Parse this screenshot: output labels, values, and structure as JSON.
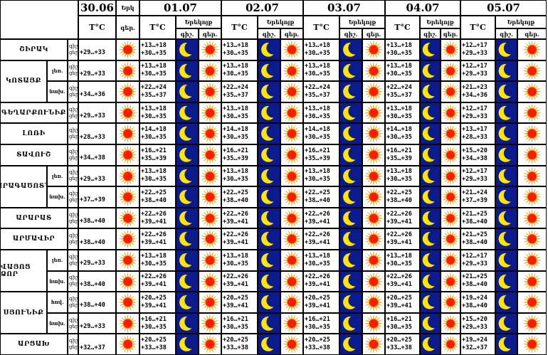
{
  "header": {
    "dates": [
      "30.06",
      "01.07",
      "02.07",
      "03.07",
      "04.07",
      "05.07"
    ],
    "temp_label": "T°C",
    "cut_label_1": "Երկ",
    "cut_label_2": "գեր.",
    "day_label": "Երեկոյք",
    "night_label": "գիշ.",
    "period_label": "գեր."
  },
  "labels": {
    "night": "գիշ.",
    "day": "ցեր."
  },
  "regions": [
    {
      "name": "ՇԻՐԱԿ"
    },
    {
      "name": "ԿՈՏԱՅՔ",
      "subs": [
        "լեռ.",
        "նախ."
      ]
    },
    {
      "name": "ԳԵՂԱՐՔՈՒՆԻՔ"
    },
    {
      "name": "ԼՈՌԻ"
    },
    {
      "name": "ՏԱՎՈՒՇ"
    },
    {
      "name": "ԱՐԱԳԱԾՈՏՆ",
      "subs": [
        "լեռ.",
        "նախ."
      ]
    },
    {
      "name": "ԱՐԱՐԱՏ"
    },
    {
      "name": "ԱՐՄԱՎԻՐ"
    },
    {
      "name": "ՎԱՅՈՑ ՁՈՐ",
      "subs": [
        "լեռ.",
        "նախ."
      ]
    },
    {
      "name": "ՍՅՈՒՆԻՔ",
      "subs": [
        "հով.",
        "նախ."
      ]
    },
    {
      "name": "ԱՐՑԱԽ"
    }
  ],
  "rows": [
    {
      "d0": "+29…+33",
      "days": [
        [
          "+13…+18",
          "+30…+35"
        ],
        [
          "+13…+18",
          "+30…+35"
        ],
        [
          "+13…+18",
          "+30…+35"
        ],
        [
          "+13…+18",
          "+30…+35"
        ],
        [
          "+12…+17",
          "+29…+33"
        ]
      ]
    },
    {
      "d0": "+29…+33",
      "days": [
        [
          "+13…+18",
          "+30…+35"
        ],
        [
          "+13…+18",
          "+30…+35"
        ],
        [
          "+13…+18",
          "+30…+35"
        ],
        [
          "+13…+18",
          "+30…+35"
        ],
        [
          "+12…+17",
          "+29…+33"
        ]
      ]
    },
    {
      "d0": "+34…+36",
      "days": [
        [
          "+22…+24",
          "+35…+37"
        ],
        [
          "+22…+24",
          "+35…+37"
        ],
        [
          "+22…+24",
          "+35…+37"
        ],
        [
          "+22…+24",
          "+35…+37"
        ],
        [
          "+21…+23",
          "+34…+36"
        ]
      ]
    },
    {
      "d0": "+29…+33",
      "days": [
        [
          "+13…+18",
          "+30…+35"
        ],
        [
          "+13…+18",
          "+30…+35"
        ],
        [
          "+13…+18",
          "+30…+35"
        ],
        [
          "+13…+18",
          "+30…+35"
        ],
        [
          "+12…+17",
          "+29…+33"
        ]
      ]
    },
    {
      "d0": "+28…+33",
      "days": [
        [
          "+14…+18",
          "+30…+35"
        ],
        [
          "+14…+18",
          "+30…+35"
        ],
        [
          "+14…+18",
          "+30…+35"
        ],
        [
          "+14…+18",
          "+30…+35"
        ],
        [
          "+13…+17",
          "+28…+33"
        ]
      ]
    },
    {
      "d0": "+34…+38",
      "days": [
        [
          "+16…+21",
          "+35…+39"
        ],
        [
          "+16…+21",
          "+35…+39"
        ],
        [
          "+16…+21",
          "+35…+39"
        ],
        [
          "+16…+21",
          "+35…+39"
        ],
        [
          "+15…+20",
          "+34…+38"
        ]
      ]
    },
    {
      "d0": "+29…+33",
      "days": [
        [
          "+13…+18",
          "+30…+35"
        ],
        [
          "+13…+18",
          "+30…+35"
        ],
        [
          "+13…+18",
          "+30…+35"
        ],
        [
          "+13…+18",
          "+30…+35"
        ],
        [
          "+12…+17",
          "+29…+33"
        ]
      ]
    },
    {
      "d0": "+37…+39",
      "days": [
        [
          "+22…+25",
          "+38…+40"
        ],
        [
          "+22…+25",
          "+38…+40"
        ],
        [
          "+22…+25",
          "+38…+40"
        ],
        [
          "+22…+25",
          "+38…+40"
        ],
        [
          "+21…+24",
          "+37…+39"
        ]
      ]
    },
    {
      "d0": "+38…+40",
      "days": [
        [
          "+22…+26",
          "+39…+41"
        ],
        [
          "+22…+26",
          "+39…+41"
        ],
        [
          "+22…+26",
          "+39…+41"
        ],
        [
          "+22…+26",
          "+39…+41"
        ],
        [
          "+21…+25",
          "+38…+40"
        ]
      ]
    },
    {
      "d0": "+38…+40",
      "days": [
        [
          "+22…+26",
          "+39…+41"
        ],
        [
          "+22…+26",
          "+39…+41"
        ],
        [
          "+22…+26",
          "+39…+41"
        ],
        [
          "+22…+26",
          "+39…+41"
        ],
        [
          "+21…+25",
          "+38…+40"
        ]
      ]
    },
    {
      "d0": "+29…+33",
      "days": [
        [
          "+13…+18",
          "+30…+35"
        ],
        [
          "+13…+18",
          "+30…+35"
        ],
        [
          "+13…+18",
          "+30…+35"
        ],
        [
          "+13…+18",
          "+30…+35"
        ],
        [
          "+12…+17",
          "+29…+33"
        ]
      ]
    },
    {
      "d0": "+38…+40",
      "days": [
        [
          "+22…+26",
          "+39…+41"
        ],
        [
          "+22…+26",
          "+39…+41"
        ],
        [
          "+22…+26",
          "+39…+41"
        ],
        [
          "+22…+26",
          "+39…+41"
        ],
        [
          "+21…+25",
          "+38…+40"
        ]
      ]
    },
    {
      "d0": "+38…+40",
      "days": [
        [
          "+20…+25",
          "+39…+41"
        ],
        [
          "+20…+25",
          "+39…+41"
        ],
        [
          "+20…+25",
          "+39…+41"
        ],
        [
          "+20…+25",
          "+39…+41"
        ],
        [
          "+19…+24",
          "+38…+40"
        ]
      ]
    },
    {
      "d0": "+29…+33",
      "days": [
        [
          "+16…+21",
          "+30…+35"
        ],
        [
          "+16…+21",
          "+30…+35"
        ],
        [
          "+16…+21",
          "+30…+35"
        ],
        [
          "+16…+21",
          "+30…+35"
        ],
        [
          "+15…+20",
          "+29…+33"
        ]
      ]
    },
    {
      "d0": "+32…+37",
      "days": [
        [
          "+20…+25",
          "+33…+38"
        ],
        [
          "+20…+25",
          "+33…+38"
        ],
        [
          "+20…+25",
          "+33…+38"
        ],
        [
          "+20…+25",
          "+33…+38"
        ],
        [
          "+19…+24",
          "+32…+37"
        ]
      ]
    }
  ],
  "icons": {
    "day": "sun-icon",
    "night": "crescent-moon-icon"
  },
  "colors": {
    "sun_core": "#ff1a00",
    "sun_rays": "#ffcc00",
    "night_bg": "#0b1a8c",
    "moon": "#ffe600"
  }
}
